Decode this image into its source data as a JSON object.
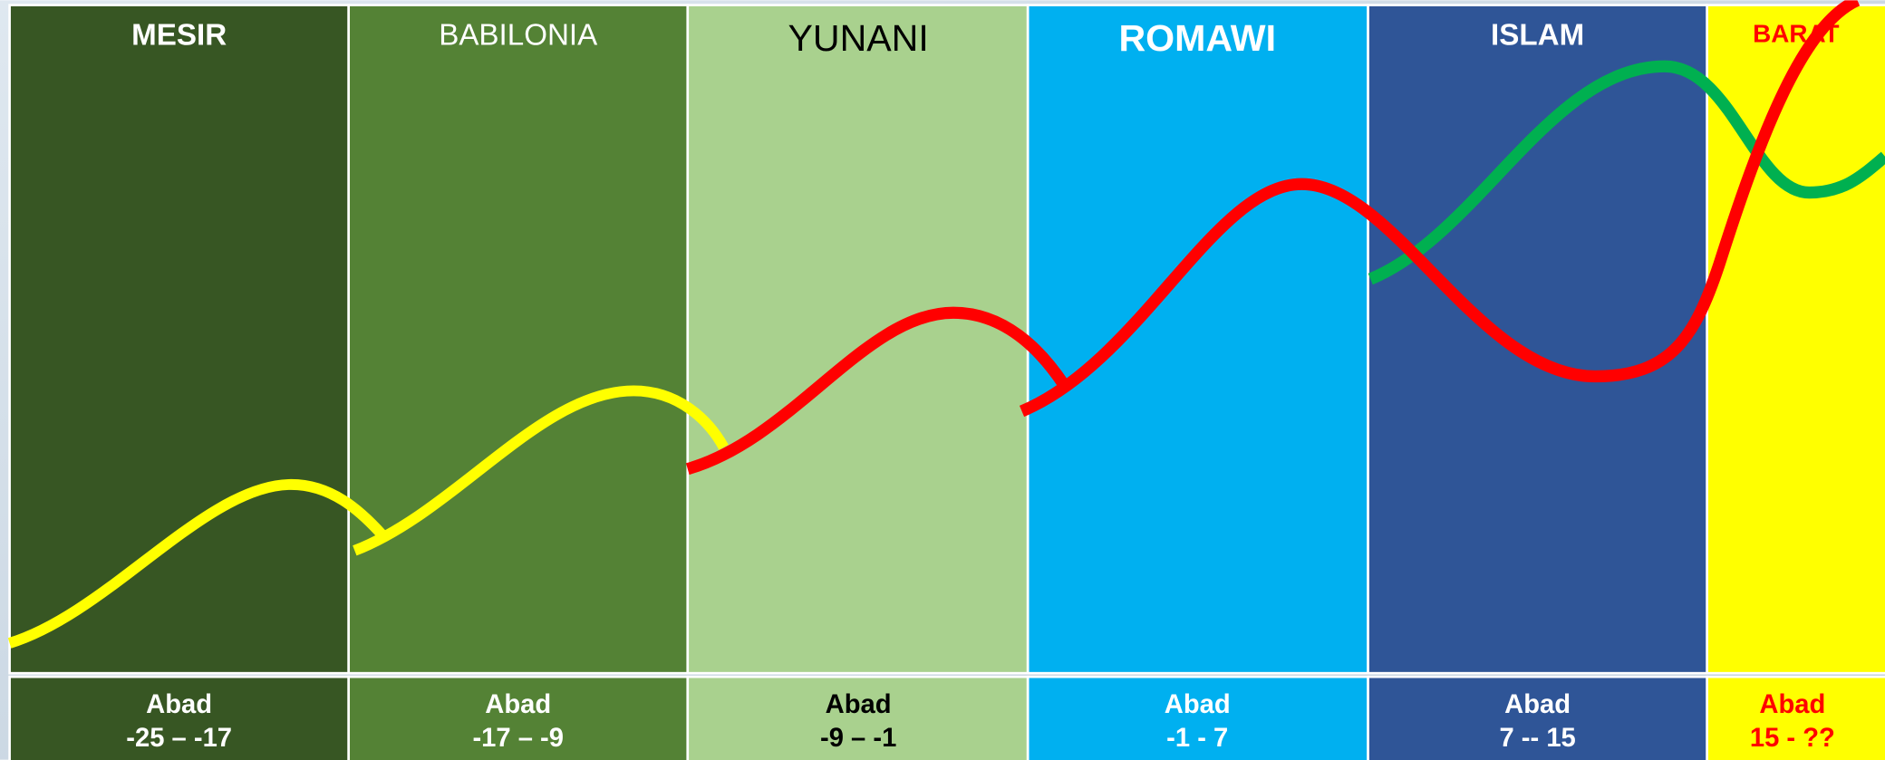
{
  "columns": [
    {
      "name": "MESIR",
      "label": "Abad",
      "period": "-25 – -17"
    },
    {
      "name": "BABILONIA",
      "label": "Abad",
      "period": "-17 – -9"
    },
    {
      "name": "YUNANI",
      "label": "Abad",
      "period": "-9 – -1"
    },
    {
      "name": "ROMAWI",
      "label": "Abad",
      "period": "-1 - 7"
    },
    {
      "name": "ISLAM",
      "label": "Abad",
      "period": "7 -- 15"
    },
    {
      "name": "BARAT",
      "label": "Abad",
      "period": "15 - ??"
    }
  ]
}
